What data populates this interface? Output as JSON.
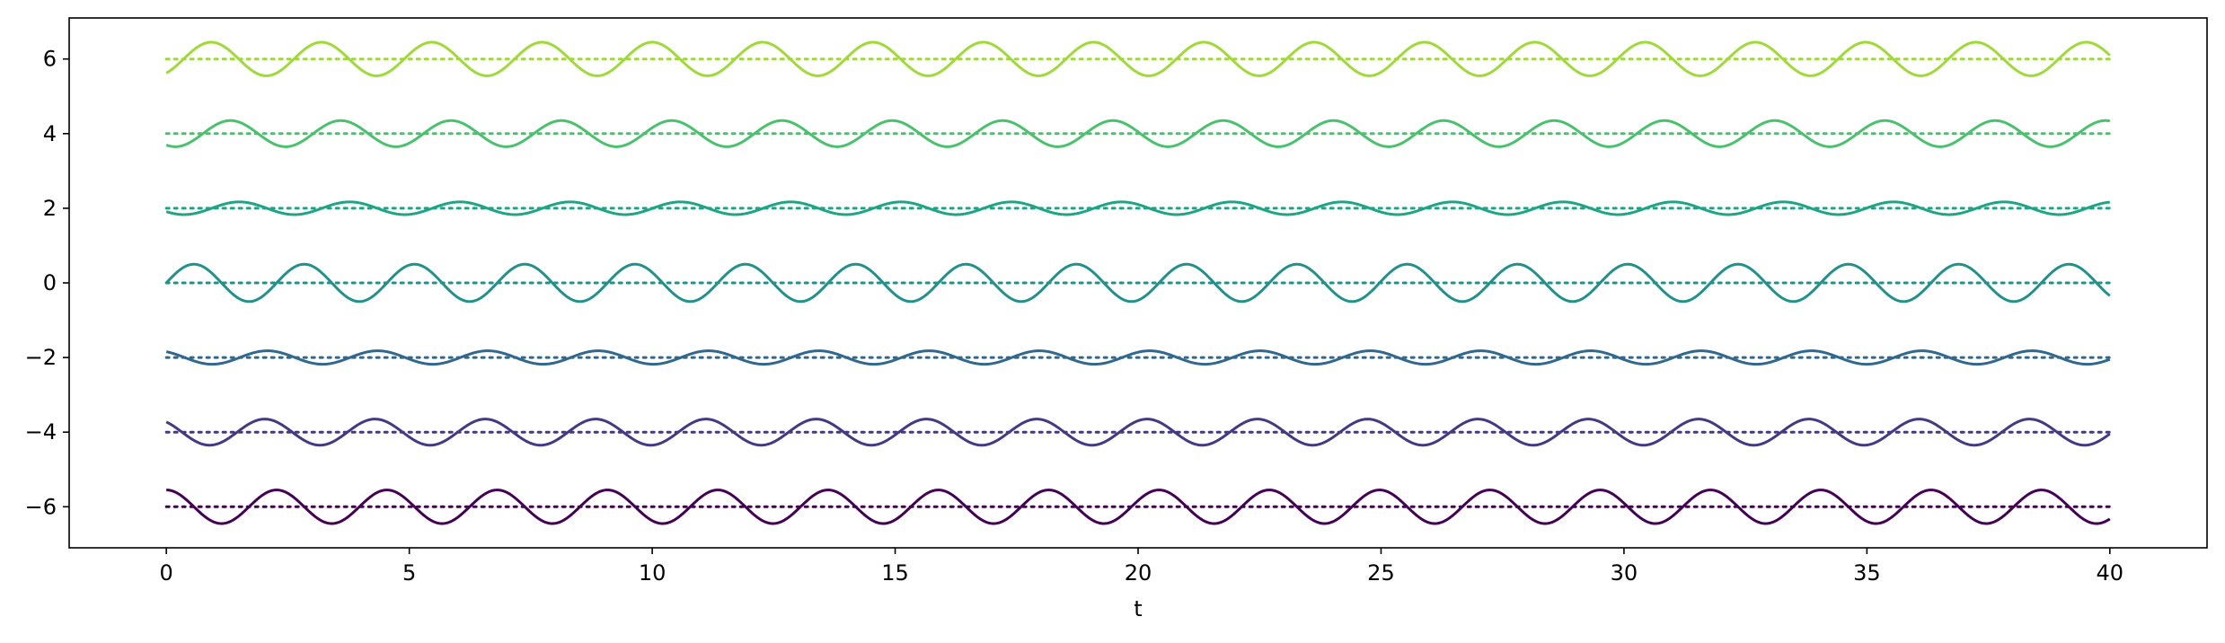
{
  "chart_data": {
    "type": "line",
    "title": "",
    "xlabel": "t",
    "ylabel": "",
    "xlim": [
      -2,
      42
    ],
    "ylim": [
      -7.1,
      7.1
    ],
    "xticks": [
      0,
      5,
      10,
      15,
      20,
      25,
      30,
      35,
      40
    ],
    "yticks": [
      -6,
      -4,
      -2,
      0,
      2,
      4,
      6
    ],
    "xtick_labels": [
      "0",
      "5",
      "10",
      "15",
      "20",
      "25",
      "30",
      "35",
      "40"
    ],
    "ytick_labels": [
      "−6",
      "−4",
      "−2",
      "0",
      "2",
      "4",
      "6"
    ],
    "grid": false,
    "legend": "none",
    "x_range": [
      0,
      40
    ],
    "period": 2.27,
    "series": [
      {
        "offset": -6,
        "amplitude": 0.45,
        "phase": 1.5708,
        "color": "#440154"
      },
      {
        "offset": -4,
        "amplitude": 0.35,
        "phase": 2.25,
        "color": "#443983"
      },
      {
        "offset": -2,
        "amplitude": 0.18,
        "phase": 2.1,
        "color": "#31688e"
      },
      {
        "offset": 0,
        "amplitude": 0.5,
        "phase": 0.0,
        "color": "#21918c"
      },
      {
        "offset": 2,
        "amplitude": 0.17,
        "phase": 3.7,
        "color": "#20a486"
      },
      {
        "offset": 4,
        "amplitude": 0.35,
        "phase": 4.2,
        "color": "#4ac16d"
      },
      {
        "offset": 6,
        "amplitude": 0.45,
        "phase": 5.3,
        "color": "#a0da39"
      }
    ]
  }
}
